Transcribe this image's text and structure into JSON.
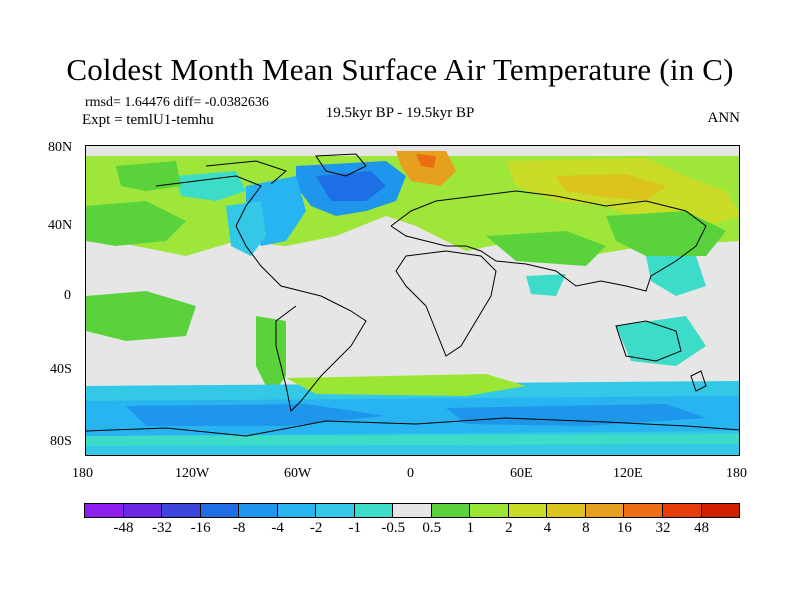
{
  "title": "Coldest Month Mean Surface Air Temperature (in C)",
  "subtitle_left_1": "rmsd= 1.64476 diff= -0.0382636",
  "subtitle_left_2": "Expt = temlU1-temhu",
  "subtitle_center": "19.5kyr BP - 19.5kyr BP",
  "subtitle_right": "ANN",
  "y_ticks": [
    "80N",
    "40N",
    "0",
    "40S",
    "80S"
  ],
  "x_ticks": [
    "180",
    "120W",
    "60W",
    "0",
    "60E",
    "120E",
    "180"
  ],
  "colorbar": {
    "labels": [
      "-48",
      "-32",
      "-16",
      "-8",
      "-4",
      "-2",
      "-1",
      "-0.5",
      "0.5",
      "1",
      "2",
      "4",
      "8",
      "16",
      "32",
      "48"
    ],
    "colors": [
      "#8c1ef0",
      "#6a28e6",
      "#3c46dc",
      "#1e6ee6",
      "#1e96eb",
      "#28b4f0",
      "#32c8e6",
      "#3cdcc8",
      "#e6e6e6",
      "#5ad23c",
      "#9be632",
      "#c8dc28",
      "#dcc31e",
      "#e6a01e",
      "#eb6e14",
      "#e63c0a",
      "#d21e00"
    ]
  }
}
